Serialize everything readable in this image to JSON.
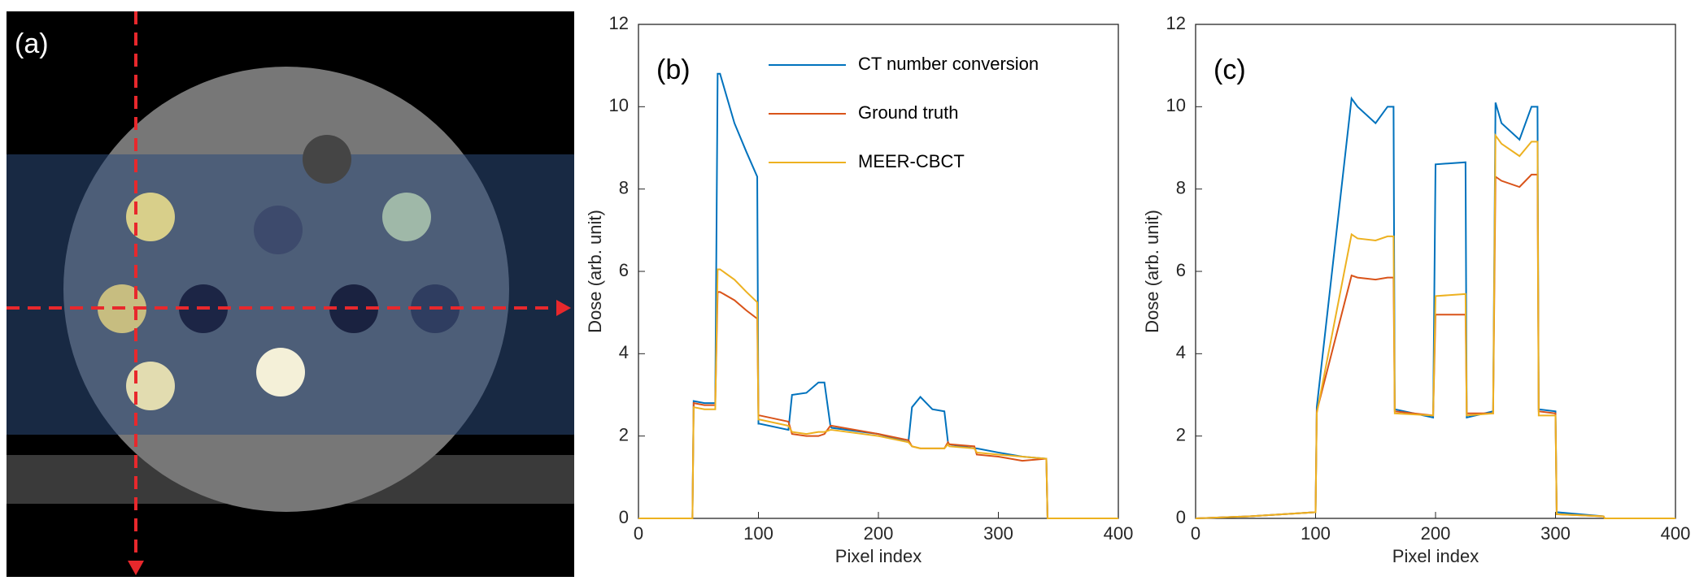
{
  "image_panel": {
    "annotation": "(a)"
  },
  "chart_data": [
    {
      "type": "line",
      "annotation": "(b)",
      "xlabel": "Pixel index",
      "ylabel": "Dose (arb. unit)",
      "xlim": [
        0,
        400
      ],
      "xticks": [
        0,
        100,
        200,
        300,
        400
      ],
      "ylim": [
        0,
        12
      ],
      "yticks": [
        0,
        2,
        4,
        6,
        8,
        10,
        12
      ],
      "legend": "top",
      "x": [
        0,
        45,
        46,
        55,
        64,
        66,
        68,
        80,
        90,
        99,
        100,
        101,
        125,
        128,
        140,
        150,
        155,
        160,
        161,
        200,
        225,
        228,
        235,
        245,
        255,
        258,
        259,
        280,
        282,
        300,
        320,
        340,
        341,
        400
      ],
      "series": [
        {
          "name": "CT number conversion",
          "color": "#0072bd",
          "values": [
            0,
            0,
            2.85,
            2.8,
            2.8,
            10.8,
            10.8,
            9.6,
            8.9,
            8.3,
            2.3,
            2.3,
            2.15,
            3.0,
            3.05,
            3.3,
            3.3,
            2.25,
            2.2,
            2.05,
            1.85,
            2.7,
            2.95,
            2.65,
            2.6,
            1.85,
            1.8,
            1.7,
            1.7,
            1.6,
            1.5,
            1.45,
            0,
            0
          ]
        },
        {
          "name": "Ground truth",
          "color": "#d95319",
          "values": [
            0,
            0,
            2.8,
            2.75,
            2.75,
            5.5,
            5.5,
            5.3,
            5.05,
            4.85,
            2.5,
            2.5,
            2.35,
            2.05,
            2.0,
            2.0,
            2.05,
            2.25,
            2.25,
            2.05,
            1.9,
            1.75,
            1.7,
            1.7,
            1.7,
            1.85,
            1.8,
            1.75,
            1.55,
            1.5,
            1.4,
            1.45,
            0,
            0
          ]
        },
        {
          "name": "MEER-CBCT",
          "color": "#edb120",
          "values": [
            0,
            0,
            2.7,
            2.65,
            2.65,
            6.05,
            6.05,
            5.8,
            5.5,
            5.25,
            2.4,
            2.4,
            2.25,
            2.1,
            2.05,
            2.1,
            2.1,
            2.15,
            2.15,
            2.0,
            1.85,
            1.75,
            1.7,
            1.7,
            1.7,
            1.8,
            1.75,
            1.7,
            1.6,
            1.55,
            1.5,
            1.45,
            0,
            0
          ]
        }
      ]
    },
    {
      "type": "line",
      "annotation": "(c)",
      "xlabel": "Pixel index",
      "ylabel": "Dose (arb. unit)",
      "xlim": [
        0,
        400
      ],
      "xticks": [
        0,
        100,
        200,
        300,
        400
      ],
      "ylim": [
        0,
        12
      ],
      "yticks": [
        0,
        2,
        4,
        6,
        8,
        10,
        12
      ],
      "x": [
        0,
        45,
        100,
        101,
        130,
        135,
        150,
        160,
        165,
        166,
        198,
        200,
        225,
        226,
        248,
        250,
        255,
        270,
        280,
        285,
        286,
        300,
        301,
        340,
        341,
        400
      ],
      "series": [
        {
          "color": "#0072bd",
          "values": [
            0,
            0.05,
            0.15,
            2.7,
            10.2,
            10.0,
            9.6,
            10.0,
            10.0,
            2.65,
            2.45,
            8.6,
            8.65,
            2.45,
            2.6,
            10.1,
            9.6,
            9.2,
            10.0,
            10.0,
            2.65,
            2.6,
            0.15,
            0.05,
            0,
            0
          ]
        },
        {
          "color": "#d95319",
          "values": [
            0,
            0.05,
            0.15,
            2.6,
            5.9,
            5.85,
            5.8,
            5.85,
            5.85,
            2.6,
            2.5,
            4.95,
            4.95,
            2.55,
            2.55,
            8.3,
            8.2,
            8.05,
            8.35,
            8.35,
            2.6,
            2.55,
            0.1,
            0.05,
            0,
            0
          ]
        },
        {
          "color": "#edb120",
          "values": [
            0,
            0.05,
            0.15,
            2.55,
            6.9,
            6.8,
            6.75,
            6.85,
            6.85,
            2.55,
            2.5,
            5.4,
            5.45,
            2.5,
            2.55,
            9.3,
            9.1,
            8.8,
            9.15,
            9.15,
            2.5,
            2.5,
            0.1,
            0.05,
            0,
            0
          ]
        }
      ]
    }
  ]
}
